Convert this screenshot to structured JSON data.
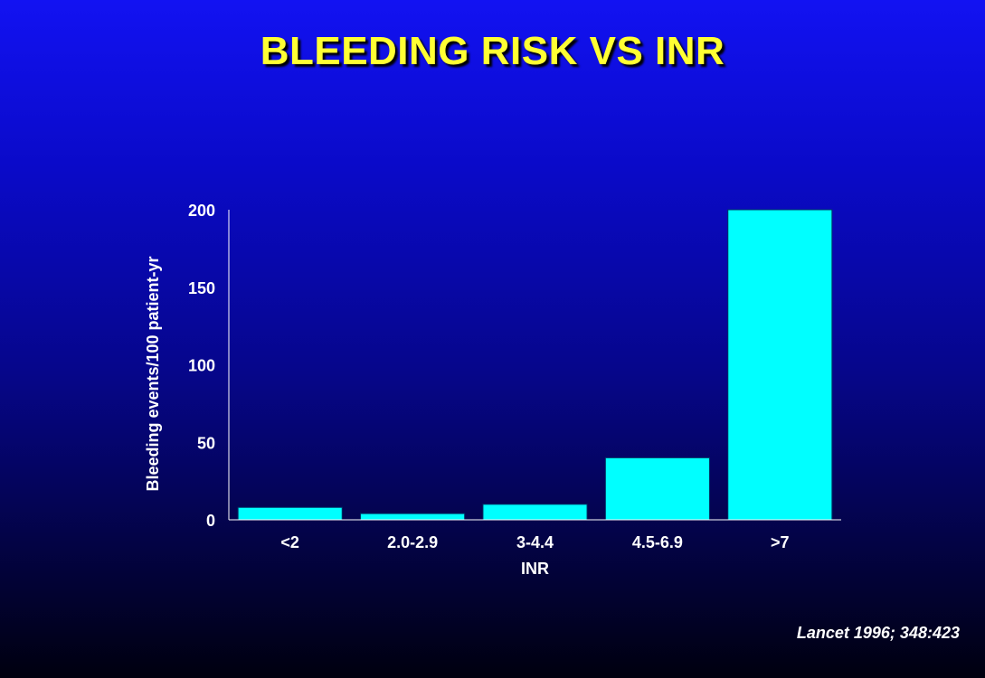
{
  "slide": {
    "title": "BLEEDING RISK VS INR",
    "citation": "Lancet 1996; 348:423"
  },
  "colors": {
    "bar": "#00ffff",
    "title": "#ffff33",
    "text": "#ffffff"
  },
  "chart_data": {
    "type": "bar",
    "title": "BLEEDING RISK VS INR",
    "xlabel": "INR",
    "ylabel": "Bleeding events/100 patient-yr",
    "categories": [
      "<2",
      "2.0-2.9",
      "3-4.4",
      "4.5-6.9",
      ">7"
    ],
    "values": [
      8,
      4,
      10,
      40,
      200
    ],
    "ylim": [
      0,
      200
    ],
    "yticks": [
      0,
      50,
      100,
      150,
      200
    ],
    "grid": false,
    "legend": false
  }
}
